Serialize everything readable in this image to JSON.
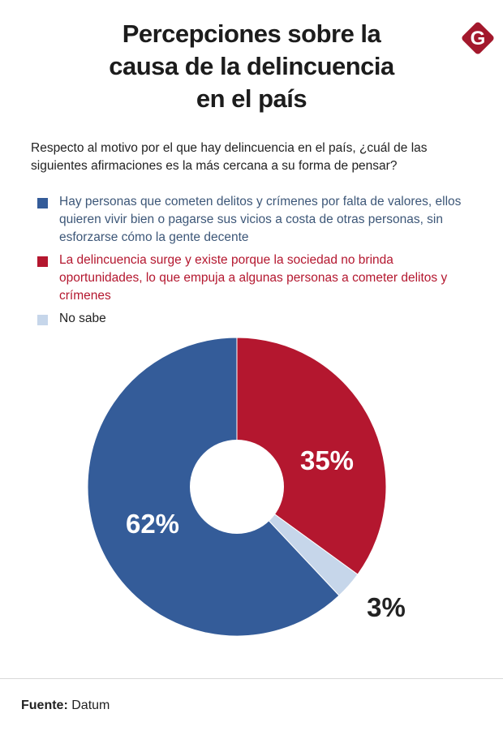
{
  "title_lines": [
    "Percepciones sobre la",
    "causa de la delincuencia",
    "en el país"
  ],
  "logo_letter": "G",
  "question": "Respecto al motivo por el que hay delincuencia en el país, ¿cuál de las siguientes afirmaciones es la más cercana a su forma de pensar?",
  "source_label": "Fuente:",
  "source_value": "Datum",
  "colors": {
    "blue": "#345c99",
    "red": "#b4172f",
    "light": "#c6d6ea",
    "blue_text": "#3d5778",
    "red_text": "#b4172f"
  },
  "chart_data": {
    "type": "pie",
    "donut": true,
    "start": "top",
    "direction": "clockwise",
    "legend_position": "top",
    "series": [
      {
        "name": "La delincuencia surge y existe porque la sociedad no brinda oportunidades, lo que empuja a algunas personas a cometer delitos y crímenes",
        "value": 35,
        "label": "35%",
        "color": "#b4172f",
        "text_color": "#b4172f",
        "label_color": "#ffffff"
      },
      {
        "name": "No sabe",
        "value": 3,
        "label": "3%",
        "color": "#c6d6ea",
        "text_color": "#222222",
        "label_color": "#222222"
      },
      {
        "name": "Hay personas que cometen delitos y crímenes por falta de valores, ellos quieren vivir bien o pagarse sus vicios a costa de otras personas, sin esforzarse cómo la gente decente",
        "value": 62,
        "label": "62%",
        "color": "#345c99",
        "text_color": "#3d5778",
        "label_color": "#ffffff"
      }
    ],
    "legend_order": [
      2,
      0,
      1
    ]
  }
}
